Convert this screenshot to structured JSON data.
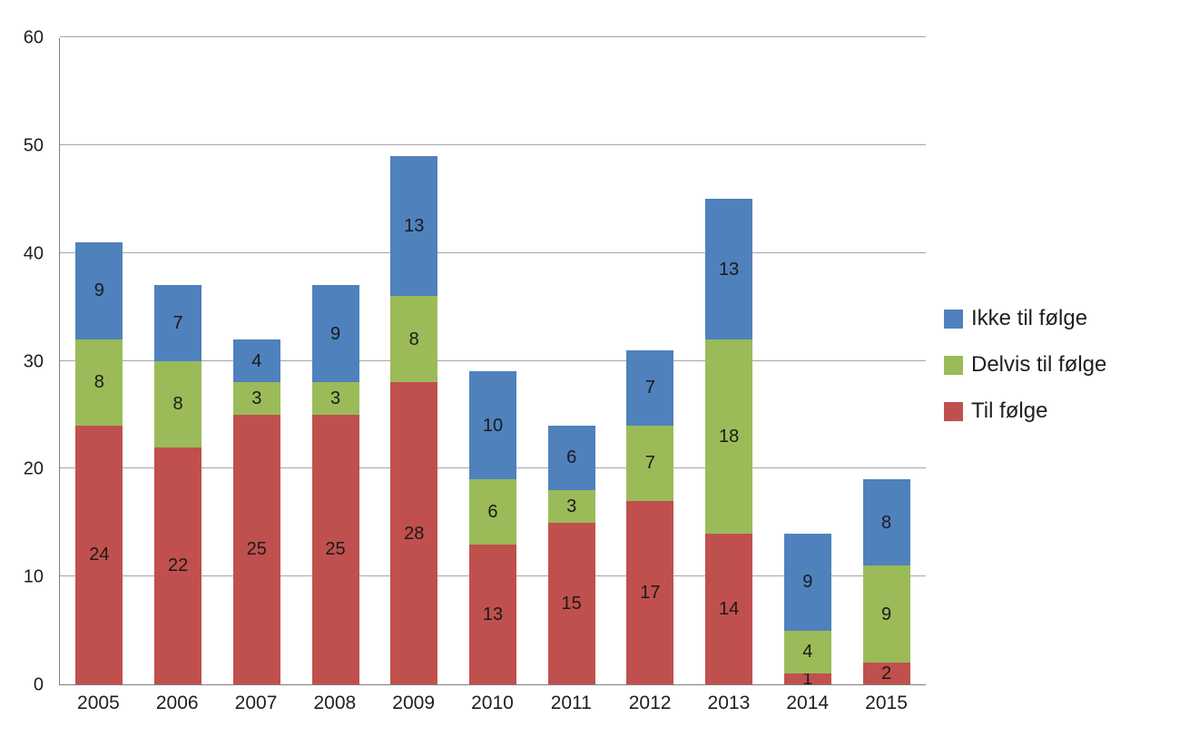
{
  "chart_data": {
    "type": "bar",
    "stacked": true,
    "title": "",
    "xlabel": "",
    "ylabel": "",
    "categories": [
      "2005",
      "2006",
      "2007",
      "2008",
      "2009",
      "2010",
      "2011",
      "2012",
      "2013",
      "2014",
      "2015"
    ],
    "series": [
      {
        "name": "Til følge",
        "color": "#C0504D",
        "values": [
          24,
          22,
          25,
          25,
          28,
          13,
          15,
          17,
          14,
          1,
          2
        ]
      },
      {
        "name": "Delvis til følge",
        "color": "#9BBB59",
        "values": [
          8,
          8,
          3,
          3,
          8,
          6,
          3,
          7,
          18,
          4,
          9
        ]
      },
      {
        "name": "Ikke til følge",
        "color": "#4F81BD",
        "values": [
          9,
          7,
          4,
          9,
          13,
          10,
          6,
          7,
          13,
          9,
          8
        ]
      }
    ],
    "totals": [
      41,
      37,
      32,
      37,
      49,
      29,
      24,
      31,
      45,
      14,
      19
    ],
    "data_labels": true,
    "ylim": [
      0,
      60
    ],
    "ytick_step": 10,
    "ytick_labels": [
      "0",
      "10",
      "20",
      "30",
      "40",
      "50",
      "60"
    ],
    "grid": true,
    "gridline_color": "#A6A6A6",
    "axis_line_color": "#7F7F7F",
    "legend_position": "right",
    "legend_order": [
      "Ikke til følge",
      "Delvis til følge",
      "Til følge"
    ]
  }
}
